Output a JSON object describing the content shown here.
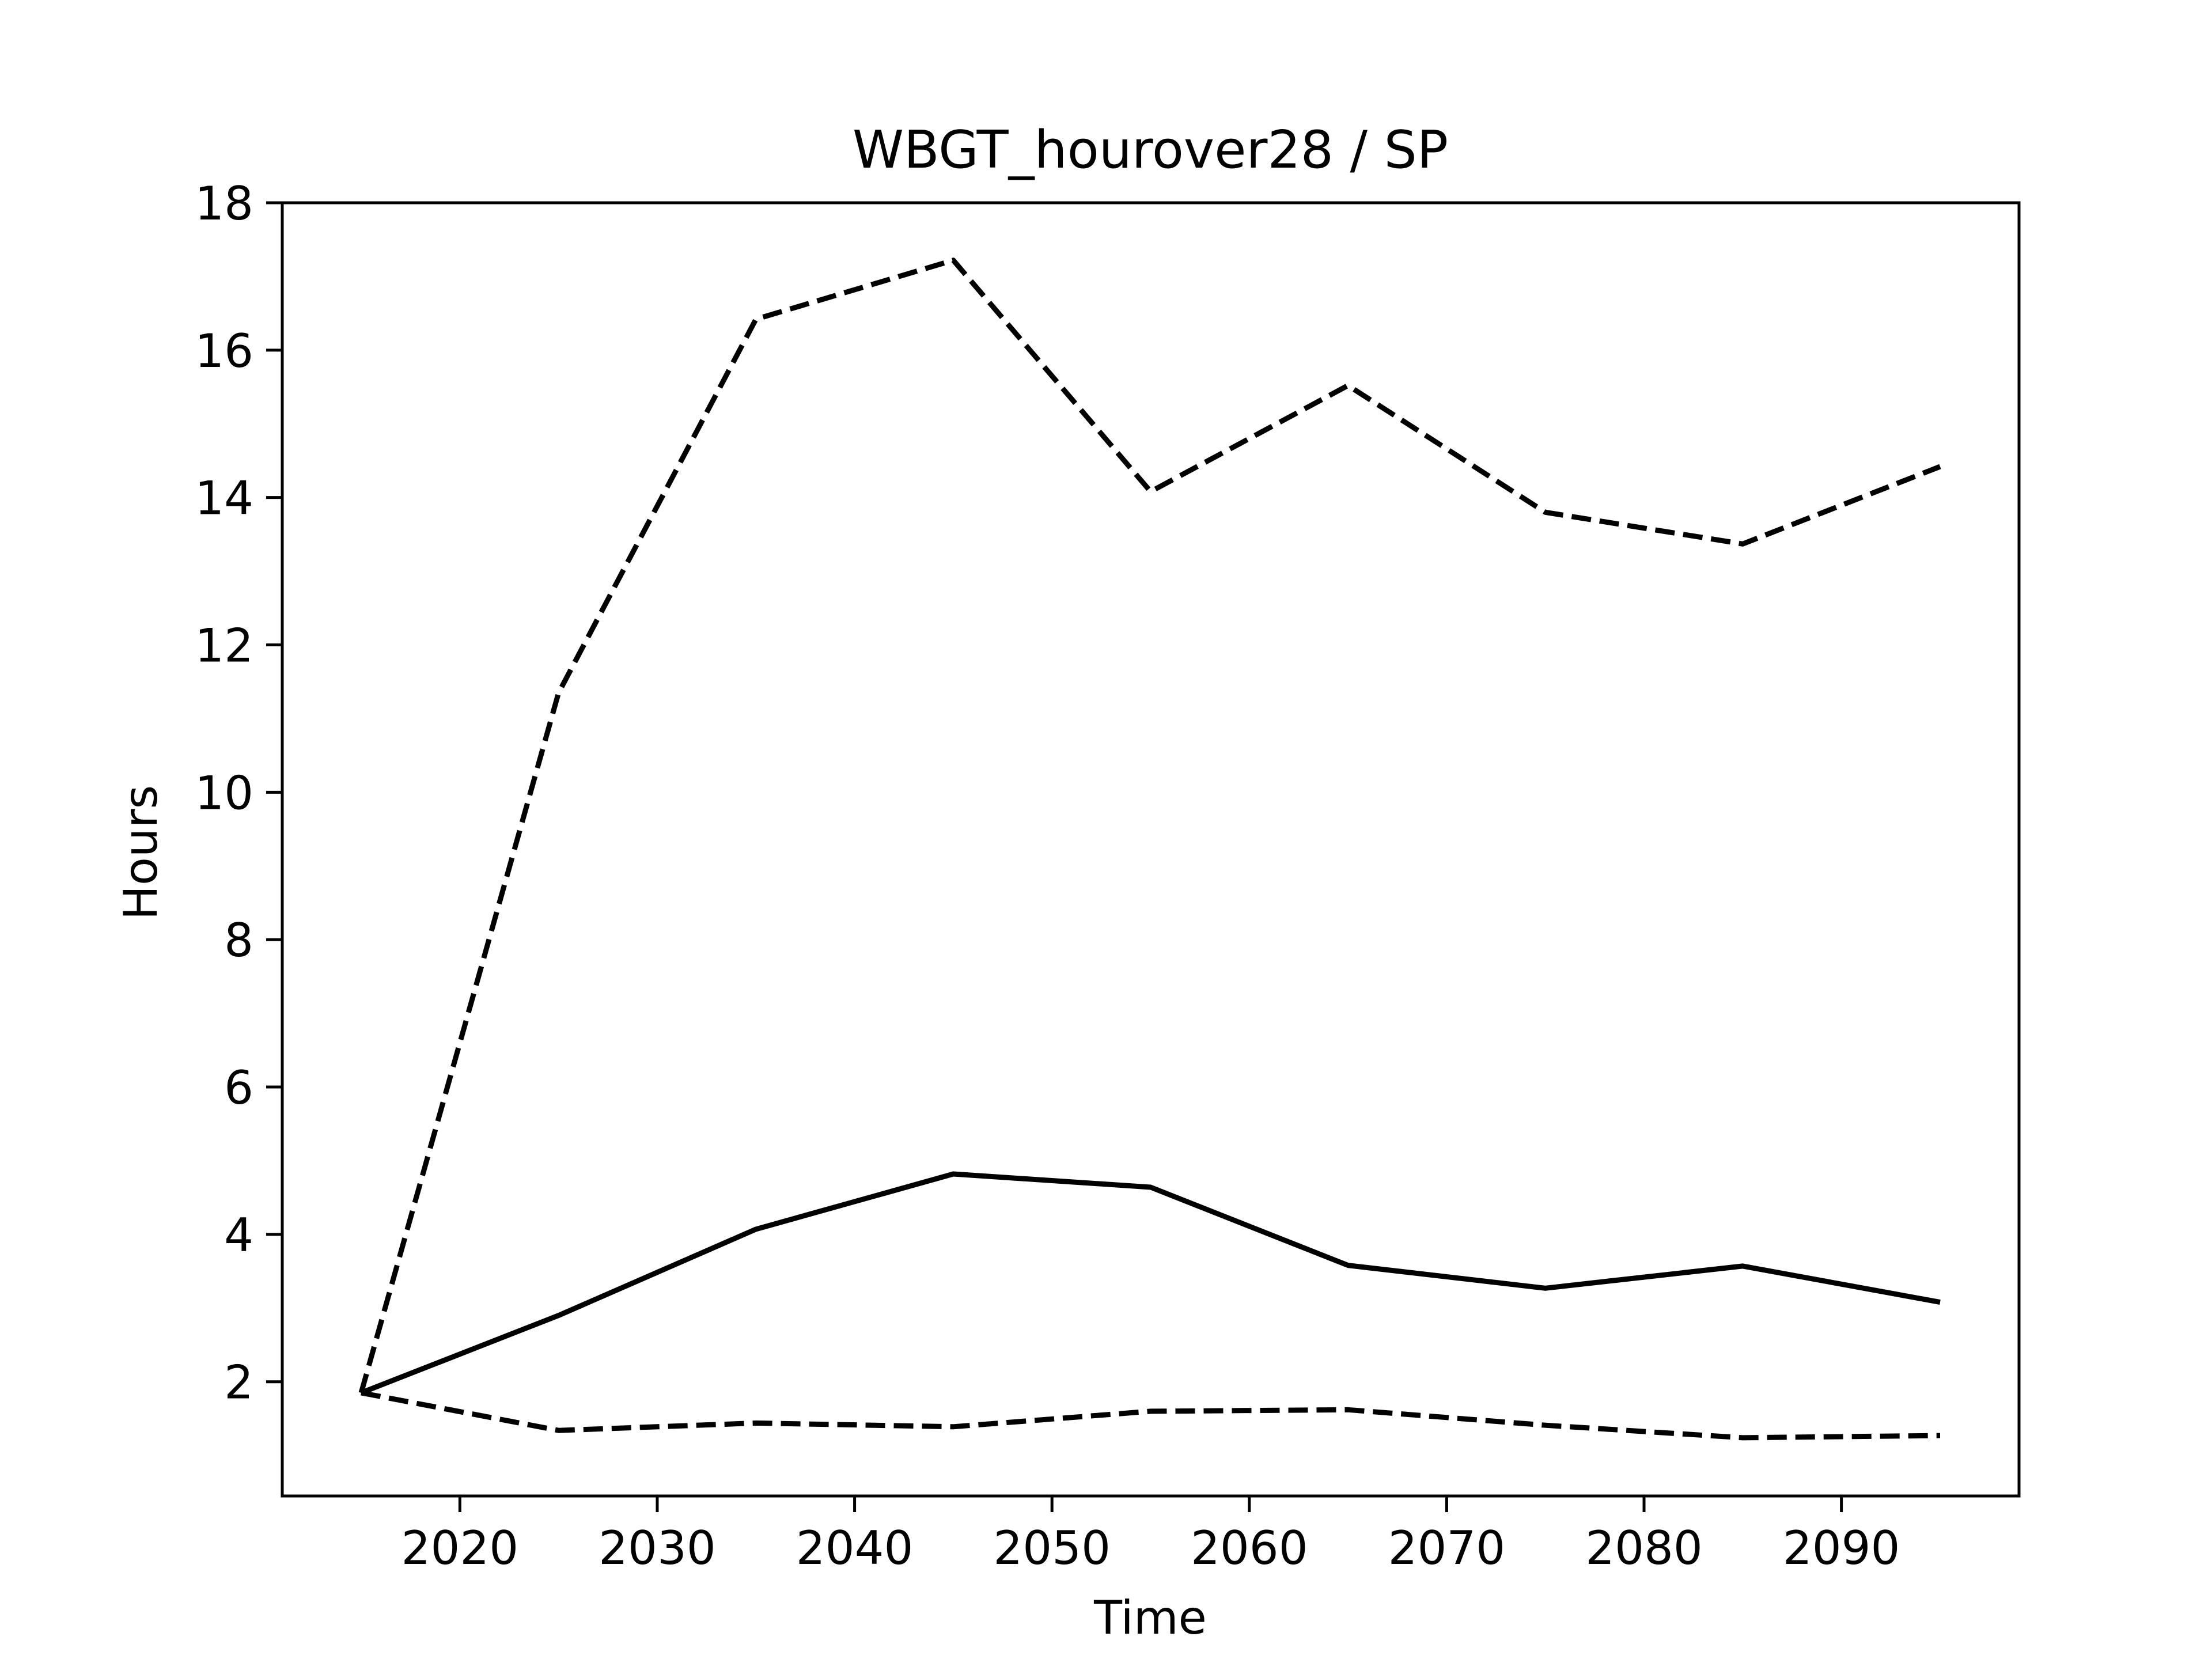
{
  "colors": {
    "line": "#000000",
    "background": "#ffffff",
    "axes": "#000000"
  },
  "chart_data": {
    "type": "line",
    "title": "WBGT_hourover28 / SP",
    "xlabel": "Time",
    "ylabel": "Hours",
    "xlim": [
      2011,
      2099
    ],
    "ylim": [
      0.45,
      18.0
    ],
    "xticks": [
      2020,
      2030,
      2040,
      2050,
      2060,
      2070,
      2080,
      2090
    ],
    "yticks": [
      2,
      4,
      6,
      8,
      10,
      12,
      14,
      16,
      18
    ],
    "grid": false,
    "legend": "none",
    "x": [
      2015,
      2025,
      2035,
      2045,
      2055,
      2065,
      2075,
      2085,
      2095
    ],
    "series": [
      {
        "style": "solid",
        "values": [
          1.85,
          2.9,
          4.07,
          4.82,
          4.64,
          3.58,
          3.27,
          3.57,
          3.08
        ]
      },
      {
        "style": "dashed",
        "values": [
          1.85,
          11.35,
          16.42,
          17.22,
          14.08,
          15.52,
          13.8,
          13.37,
          14.42
        ]
      },
      {
        "style": "dashed",
        "values": [
          1.85,
          1.34,
          1.44,
          1.39,
          1.6,
          1.62,
          1.41,
          1.24,
          1.27
        ]
      }
    ]
  }
}
